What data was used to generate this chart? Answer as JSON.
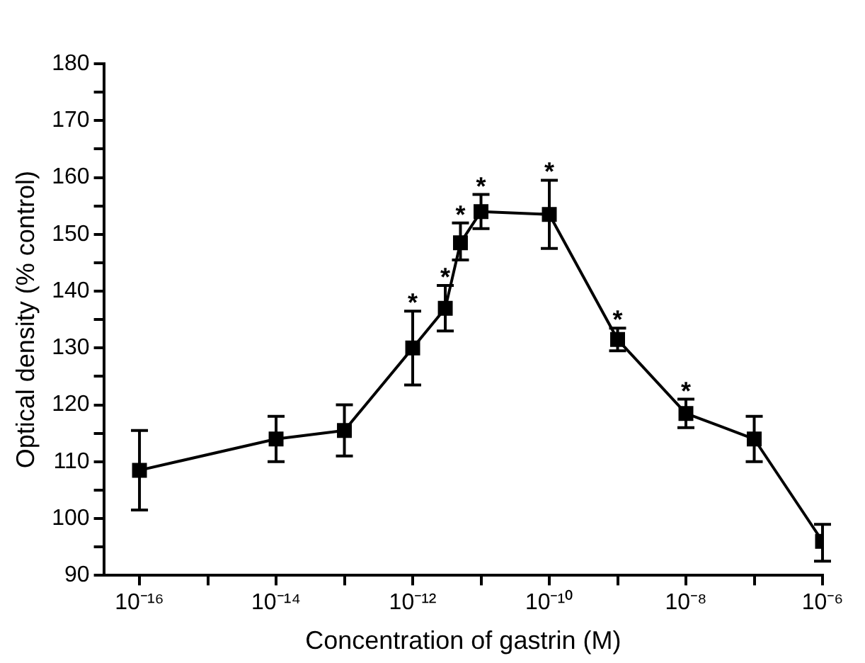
{
  "chart_data": {
    "type": "line",
    "xlabel": "Concentration of gastrin (M)",
    "ylabel": "Optical density (% control)",
    "x": [
      1e-16,
      1e-14,
      1e-13,
      1e-12,
      3e-12,
      5e-12,
      1e-11,
      1e-10,
      1e-09,
      1e-08,
      1e-07,
      1e-06
    ],
    "series": [
      {
        "color": "#000000",
        "values": [
          108.5,
          114,
          115.5,
          130,
          137,
          148.5,
          154,
          153.5,
          131.5,
          118.5,
          114,
          96
        ],
        "errors": [
          [
            101.5,
            115.5
          ],
          [
            110,
            118
          ],
          [
            111,
            120
          ],
          [
            123.5,
            136.5
          ],
          [
            133,
            141
          ],
          [
            145.5,
            152
          ],
          [
            151,
            157
          ],
          [
            147.5,
            159.5
          ],
          [
            129.5,
            133.5
          ],
          [
            116,
            121
          ],
          [
            110,
            118
          ],
          [
            92.5,
            99
          ]
        ]
      }
    ],
    "log": "x",
    "xlim": [
      3e-17,
      1e-06
    ],
    "xticks": [
      {
        "value": 1e-16,
        "label": "10⁻¹⁶"
      },
      {
        "value": 1e-15,
        "label": null
      },
      {
        "value": 1e-14,
        "label": "10⁻¹⁴"
      },
      {
        "value": 1e-13,
        "label": null
      },
      {
        "value": 1e-12,
        "label": "10⁻¹²"
      },
      {
        "value": 1e-11,
        "label": null
      },
      {
        "value": 1e-10,
        "label": "10⁻¹⁰"
      },
      {
        "value": 1e-09,
        "label": null
      },
      {
        "value": 1e-08,
        "label": "10⁻⁸"
      },
      {
        "value": 1e-07,
        "label": null
      },
      {
        "value": 1e-06,
        "label": "10⁻⁶"
      }
    ],
    "ylim": [
      90,
      180
    ],
    "yticks": [
      90,
      {
        "value": 95,
        "label": null
      },
      100,
      {
        "value": 105,
        "label": null
      },
      110,
      {
        "value": 115,
        "label": null
      },
      120,
      {
        "value": 125,
        "label": null
      },
      130,
      {
        "value": 135,
        "label": null
      },
      140,
      {
        "value": 145,
        "label": null
      },
      150,
      {
        "value": 155,
        "label": null
      },
      160,
      {
        "value": 165,
        "label": null
      },
      170,
      {
        "value": 175,
        "label": null
      },
      180
    ],
    "annotations": [
      {
        "text": "*",
        "x": 1e-12,
        "y": 136.5
      },
      {
        "text": "*",
        "x": 3e-12,
        "y": 141
      },
      {
        "text": "*",
        "x": 5e-12,
        "y": 152
      },
      {
        "text": "*",
        "x": 1e-11,
        "y": 157
      },
      {
        "text": "*",
        "x": 1e-10,
        "y": 159.5
      },
      {
        "text": "*",
        "x": 1e-09,
        "y": 133.5
      },
      {
        "text": "*",
        "x": 1e-08,
        "y": 121
      }
    ],
    "grid": false,
    "legend": false,
    "marker": "square",
    "line_style": "solid"
  }
}
